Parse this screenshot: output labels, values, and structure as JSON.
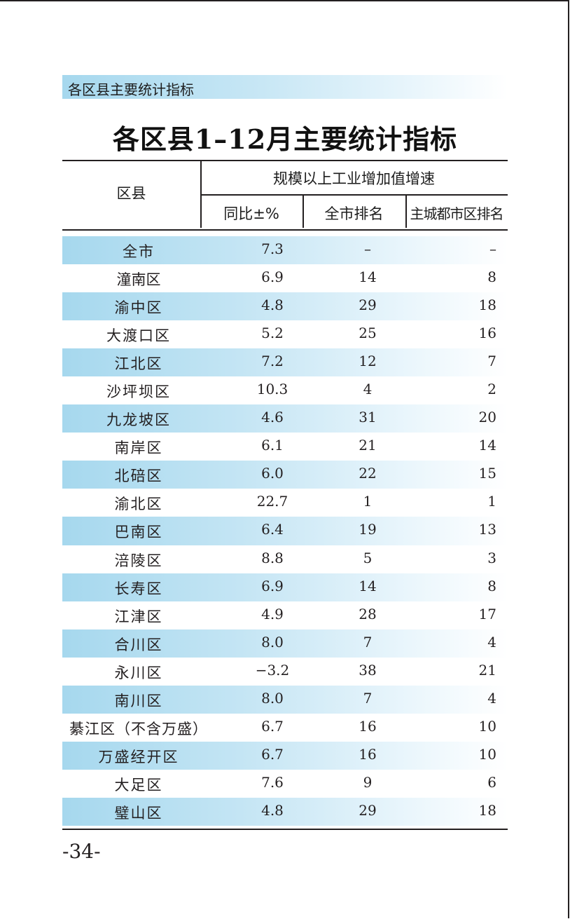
{
  "section_banner": "各区县主要统计指标",
  "title": "各区县1–12月主要统计指标",
  "table": {
    "col_district": "区县",
    "group_header": "规模以上工业增加值增速",
    "col_yoy": "同比±%",
    "col_city_rank": "全市排名",
    "col_urban_rank": "主城都市区排名",
    "rows": [
      {
        "name": "全市",
        "yoy": "7.3",
        "city_rank": "–",
        "urban_rank": "–"
      },
      {
        "name": "潼南区",
        "yoy": "6.9",
        "city_rank": "14",
        "urban_rank": "8"
      },
      {
        "name": "渝中区",
        "yoy": "4.8",
        "city_rank": "29",
        "urban_rank": "18"
      },
      {
        "name": "大渡口区",
        "yoy": "5.2",
        "city_rank": "25",
        "urban_rank": "16"
      },
      {
        "name": "江北区",
        "yoy": "7.2",
        "city_rank": "12",
        "urban_rank": "7"
      },
      {
        "name": "沙坪坝区",
        "yoy": "10.3",
        "city_rank": "4",
        "urban_rank": "2"
      },
      {
        "name": "九龙坡区",
        "yoy": "4.6",
        "city_rank": "31",
        "urban_rank": "20"
      },
      {
        "name": "南岸区",
        "yoy": "6.1",
        "city_rank": "21",
        "urban_rank": "14"
      },
      {
        "name": "北碚区",
        "yoy": "6.0",
        "city_rank": "22",
        "urban_rank": "15"
      },
      {
        "name": "渝北区",
        "yoy": "22.7",
        "city_rank": "1",
        "urban_rank": "1"
      },
      {
        "name": "巴南区",
        "yoy": "6.4",
        "city_rank": "19",
        "urban_rank": "13"
      },
      {
        "name": "涪陵区",
        "yoy": "8.8",
        "city_rank": "5",
        "urban_rank": "3"
      },
      {
        "name": "长寿区",
        "yoy": "6.9",
        "city_rank": "14",
        "urban_rank": "8"
      },
      {
        "name": "江津区",
        "yoy": "4.9",
        "city_rank": "28",
        "urban_rank": "17"
      },
      {
        "name": "合川区",
        "yoy": "8.0",
        "city_rank": "7",
        "urban_rank": "4"
      },
      {
        "name": "永川区",
        "yoy": "−3.2",
        "city_rank": "38",
        "urban_rank": "21"
      },
      {
        "name": "南川区",
        "yoy": "8.0",
        "city_rank": "7",
        "urban_rank": "4"
      },
      {
        "name": "綦江区（不含万盛）",
        "yoy": "6.7",
        "city_rank": "16",
        "urban_rank": "10"
      },
      {
        "name": "万盛经开区",
        "yoy": "6.7",
        "city_rank": "16",
        "urban_rank": "10"
      },
      {
        "name": "大足区",
        "yoy": "7.6",
        "city_rank": "9",
        "urban_rank": "6"
      },
      {
        "name": "璧山区",
        "yoy": "4.8",
        "city_rank": "29",
        "urban_rank": "18"
      }
    ]
  },
  "page_number": "-34-",
  "colors": {
    "band": "#a6d8ee",
    "ink": "#231f20"
  }
}
